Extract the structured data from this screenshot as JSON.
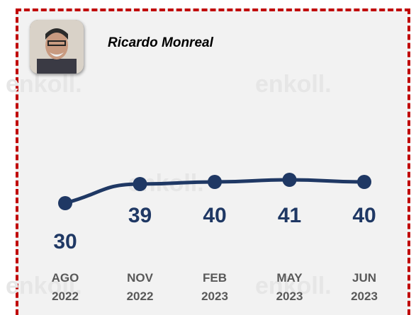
{
  "title": "Ricardo Monreal",
  "watermark": "enkoll.",
  "chart_data": {
    "type": "line",
    "categories": [
      "AGO 2022",
      "NOV 2022",
      "FEB 2023",
      "MAY 2023",
      "JUN 2023"
    ],
    "series": [
      {
        "name": "Ricardo Monreal",
        "color": "#1f3864",
        "values": [
          30,
          39,
          40,
          41,
          40
        ]
      }
    ]
  }
}
